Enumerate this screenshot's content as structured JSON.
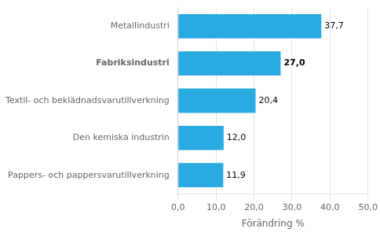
{
  "chart_data": {
    "type": "bar",
    "orientation": "horizontal",
    "categories": [
      "Pappers- och pappersvarutillverkning",
      "Den kemiska industrin",
      "Textil- och beklädnadsvarutillverkning",
      "Fabriksindustri",
      "Metallindustri"
    ],
    "values": [
      11.9,
      12.0,
      20.4,
      27.0,
      37.7
    ],
    "value_labels": [
      "11,9",
      "12,0",
      "20,4",
      "27,0",
      "37,7"
    ],
    "data_labels": true,
    "color": "#29ABE2",
    "x_label": "Förändring %",
    "xlim": [
      0,
      50.0
    ],
    "xticks": [
      {
        "value": 0,
        "label": "0,0"
      },
      {
        "value": 10,
        "label": "10,0"
      },
      {
        "value": 20,
        "label": "20,0"
      },
      {
        "value": 30,
        "label": "30,0"
      },
      {
        "value": 40,
        "label": "40,0"
      },
      {
        "value": 50,
        "label": "50,0"
      }
    ],
    "grid": true
  }
}
